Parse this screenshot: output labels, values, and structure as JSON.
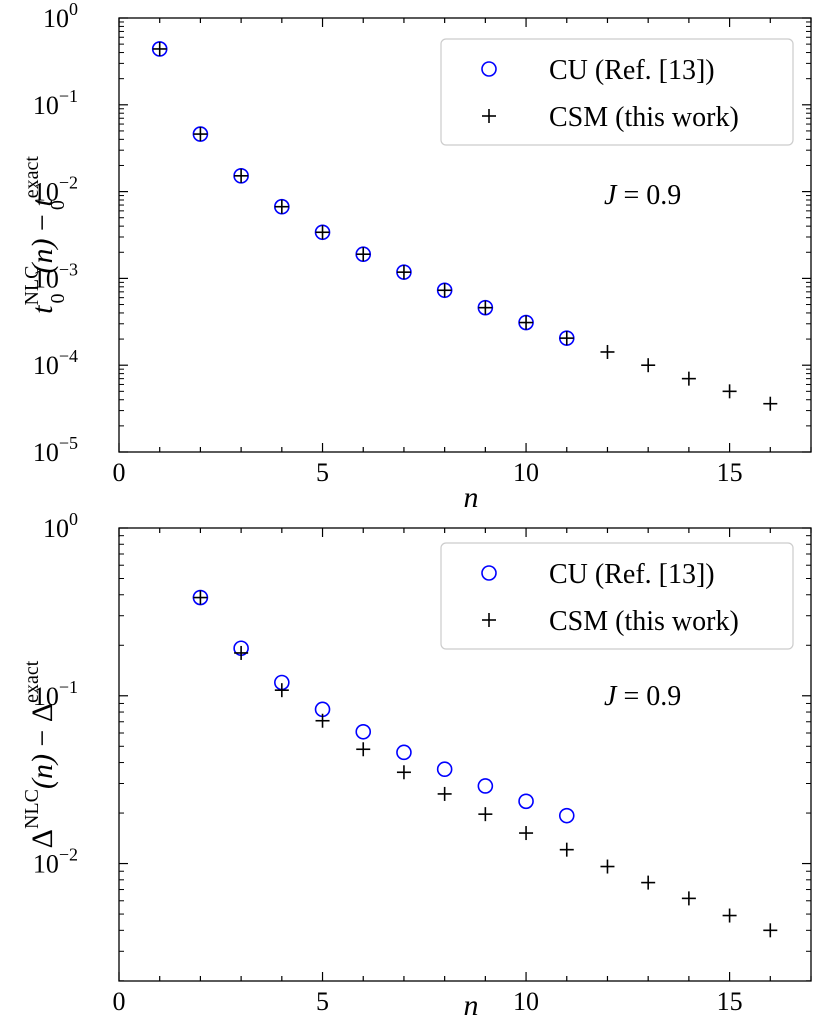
{
  "chart_data": [
    {
      "type": "scatter",
      "yscale": "log",
      "xlabel": "n",
      "ylabel": "t_0^{NLC}(n) − t_0^{exact}",
      "ylabel_parts": {
        "t_base": "t",
        "sub": "0",
        "sup_nlc": "NLC",
        "n_arg": "(n)",
        "minus": " − ",
        "sup_exact": "exact"
      },
      "xlim": [
        0,
        17
      ],
      "ylim_exp": [
        -5,
        0
      ],
      "xticks": [
        0,
        5,
        10,
        15
      ],
      "xtick_labels": [
        "0",
        "5",
        "10",
        "15"
      ],
      "yticks_exp": [
        -5,
        -4,
        -3,
        -2,
        -1,
        0
      ],
      "ytick_labels": [
        {
          "base": "10",
          "exp": "−5"
        },
        {
          "base": "10",
          "exp": "−4"
        },
        {
          "base": "10",
          "exp": "−3"
        },
        {
          "base": "10",
          "exp": "−2"
        },
        {
          "base": "10",
          "exp": "−1"
        },
        {
          "base": "10",
          "exp": "0"
        }
      ],
      "annotation": {
        "var": "J",
        "eq": " = ",
        "val": "0.9"
      },
      "legend_position": "top-right",
      "series": [
        {
          "name": "CU (Ref. [13])",
          "marker": "circle",
          "color": "#0000ff",
          "x": [
            1,
            2,
            3,
            4,
            5,
            6,
            7,
            8,
            9,
            10,
            11
          ],
          "y": [
            0.44,
            0.046,
            0.0152,
            0.0067,
            0.0034,
            0.0019,
            0.00118,
            0.00073,
            0.00046,
            0.00031,
            0.000205
          ]
        },
        {
          "name": "CSM (this work)",
          "marker": "plus",
          "color": "#000000",
          "x": [
            1,
            2,
            3,
            4,
            5,
            6,
            7,
            8,
            9,
            10,
            11,
            12,
            13,
            14,
            15,
            16
          ],
          "y": [
            0.44,
            0.046,
            0.0152,
            0.0067,
            0.0034,
            0.0019,
            0.00118,
            0.00073,
            0.00046,
            0.00031,
            0.000205,
            0.000142,
            0.0001,
            7e-05,
            5e-05,
            3.6e-05
          ]
        }
      ]
    },
    {
      "type": "scatter",
      "yscale": "log",
      "xlabel": "n",
      "ylabel": "Δ^{NLC}(n) − Δ^{exact}",
      "ylabel_parts": {
        "t_base": "Δ",
        "sub": "",
        "sup_nlc": "NLC",
        "n_arg": "(n)",
        "minus": " − ",
        "sup_exact": "exact"
      },
      "xlim": [
        0,
        17
      ],
      "ylim_exp": [
        -2.7,
        0
      ],
      "xticks": [
        0,
        5,
        10,
        15
      ],
      "xtick_labels": [
        "0",
        "5",
        "10",
        "15"
      ],
      "yticks_exp": [
        -2,
        -1,
        0
      ],
      "ytick_labels": [
        {
          "base": "10",
          "exp": "−2"
        },
        {
          "base": "10",
          "exp": "−1"
        },
        {
          "base": "10",
          "exp": "0"
        }
      ],
      "annotation": {
        "var": "J",
        "eq": " = ",
        "val": "0.9"
      },
      "legend_position": "top-right",
      "series": [
        {
          "name": "CU (Ref. [13])",
          "marker": "circle",
          "color": "#0000ff",
          "x": [
            2,
            3,
            4,
            5,
            6,
            7,
            8,
            9,
            10,
            11
          ],
          "y": [
            0.385,
            0.192,
            0.12,
            0.083,
            0.061,
            0.046,
            0.0365,
            0.029,
            0.0235,
            0.0193
          ]
        },
        {
          "name": "CSM (this work)",
          "marker": "plus",
          "color": "#000000",
          "x": [
            2,
            3,
            4,
            5,
            6,
            7,
            8,
            9,
            10,
            11,
            12,
            13,
            14,
            15,
            16
          ],
          "y": [
            0.385,
            0.18,
            0.108,
            0.071,
            0.048,
            0.035,
            0.026,
            0.0197,
            0.0152,
            0.0121,
            0.0096,
            0.0077,
            0.0062,
            0.0049,
            0.004
          ]
        }
      ]
    }
  ]
}
